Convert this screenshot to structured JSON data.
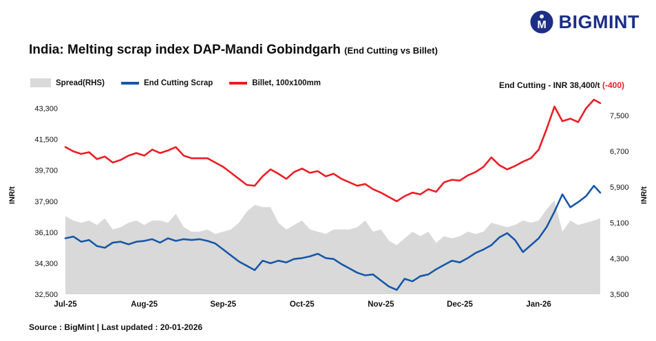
{
  "header": {
    "brand": "BIGMINT",
    "brand_color": "#1c2e87",
    "title_main": "India: Melting scrap index DAP-Mandi Gobindgarh",
    "title_sub": "(End Cutting vs Billet)"
  },
  "legend": {
    "items": [
      {
        "label": "Spread(RHS)"
      },
      {
        "label": "End Cutting Scrap"
      },
      {
        "label": "Billet, 100x100mm"
      }
    ]
  },
  "annotation": {
    "label": "End Cutting - INR 38,400/t",
    "change": "(-400)",
    "change_color": "#ec1c24"
  },
  "footer": {
    "source": "Source : BigMint | Last updated : 20-01-2026"
  },
  "chart_data": {
    "type": "line",
    "title": "India: Melting scrap index DAP-Mandi Gobindgarh (End Cutting vs Billet)",
    "x_labels": [
      "Jul-25",
      "Aug-25",
      "Sep-25",
      "Oct-25",
      "Nov-25",
      "Dec-25",
      "Jan-26"
    ],
    "x_domain": [
      0,
      6.78
    ],
    "left_axis": {
      "label": "INR/t",
      "ticks": [
        43300,
        41500,
        39700,
        37900,
        36100,
        34300,
        32500
      ],
      "domain": [
        32500,
        44000
      ]
    },
    "right_axis": {
      "label": "INR/t",
      "ticks": [
        7500,
        6700,
        5900,
        5100,
        4300,
        3500
      ],
      "domain": [
        3500,
        7930
      ]
    },
    "grid": false,
    "legend_position": "top-left",
    "t": [
      0,
      0.1,
      0.2,
      0.3,
      0.4,
      0.5,
      0.6,
      0.7,
      0.8,
      0.9,
      1,
      1.1,
      1.2,
      1.3,
      1.4,
      1.5,
      1.6,
      1.7,
      1.8,
      1.9,
      2,
      2.1,
      2.2,
      2.3,
      2.4,
      2.5,
      2.6,
      2.7,
      2.8,
      2.9,
      3,
      3.1,
      3.2,
      3.3,
      3.4,
      3.5,
      3.6,
      3.7,
      3.8,
      3.9,
      4,
      4.1,
      4.2,
      4.3,
      4.4,
      4.5,
      4.6,
      4.7,
      4.8,
      4.9,
      5,
      5.1,
      5.2,
      5.3,
      5.4,
      5.5,
      5.6,
      5.7,
      5.8,
      5.9,
      6,
      6.1,
      6.2,
      6.3,
      6.4,
      6.5,
      6.6,
      6.7,
      6.78
    ],
    "series": [
      {
        "id": "spread-area",
        "name": "Spread(RHS)",
        "type": "area",
        "axis": "right",
        "color": "#d9d9d9",
        "values": [
          5250,
          5150,
          5100,
          5150,
          5050,
          5200,
          4950,
          5000,
          5100,
          5150,
          5050,
          5150,
          5150,
          5100,
          5300,
          5000,
          4900,
          4900,
          4950,
          4850,
          4900,
          4950,
          5100,
          5350,
          5500,
          5450,
          5450,
          5100,
          4950,
          5050,
          5150,
          4950,
          4900,
          4850,
          4950,
          4950,
          4950,
          5000,
          5150,
          4900,
          4950,
          4700,
          4600,
          4750,
          4900,
          4800,
          4900,
          4650,
          4800,
          4750,
          4800,
          4900,
          4850,
          4900,
          5100,
          5050,
          5000,
          5050,
          5150,
          5100,
          5150,
          5400,
          5600,
          4900,
          5150,
          5050,
          5100,
          5150,
          5200
        ]
      },
      {
        "id": "end-cutting-line",
        "name": "End Cutting Scrap",
        "type": "line",
        "axis": "left",
        "color": "#1657a8",
        "values": [
          35750,
          35850,
          35550,
          35650,
          35300,
          35200,
          35500,
          35550,
          35400,
          35550,
          35600,
          35700,
          35500,
          35750,
          35600,
          35700,
          35650,
          35700,
          35600,
          35450,
          35100,
          34750,
          34400,
          34150,
          33900,
          34450,
          34300,
          34450,
          34350,
          34550,
          34600,
          34700,
          34850,
          34600,
          34550,
          34250,
          34000,
          33750,
          33600,
          33650,
          33300,
          32950,
          32750,
          33400,
          33250,
          33550,
          33650,
          33950,
          34200,
          34450,
          34350,
          34600,
          34900,
          35100,
          35350,
          35800,
          36050,
          35650,
          34950,
          35350,
          35750,
          36400,
          37300,
          38300,
          37550,
          37850,
          38200,
          38800,
          38400
        ]
      },
      {
        "id": "billet-line",
        "name": "Billet, 100x100mm",
        "type": "line",
        "axis": "left",
        "color": "#ec1c24",
        "values": [
          41050,
          40800,
          40650,
          40750,
          40350,
          40500,
          40150,
          40300,
          40550,
          40700,
          40550,
          40900,
          40700,
          40850,
          41050,
          40550,
          40400,
          40400,
          40400,
          40150,
          39900,
          39550,
          39200,
          38850,
          38800,
          39350,
          39750,
          39500,
          39200,
          39600,
          39800,
          39550,
          39650,
          39350,
          39500,
          39200,
          39000,
          38800,
          38900,
          38600,
          38400,
          38150,
          37900,
          38200,
          38400,
          38300,
          38600,
          38450,
          39000,
          39150,
          39100,
          39400,
          39600,
          39900,
          40450,
          40000,
          39750,
          39950,
          40200,
          40400,
          40900,
          42100,
          43400,
          42550,
          42700,
          42500,
          43300,
          43800,
          43600
        ]
      }
    ],
    "last_values": {
      "end_cutting": 38400,
      "end_cutting_change": -400
    }
  }
}
